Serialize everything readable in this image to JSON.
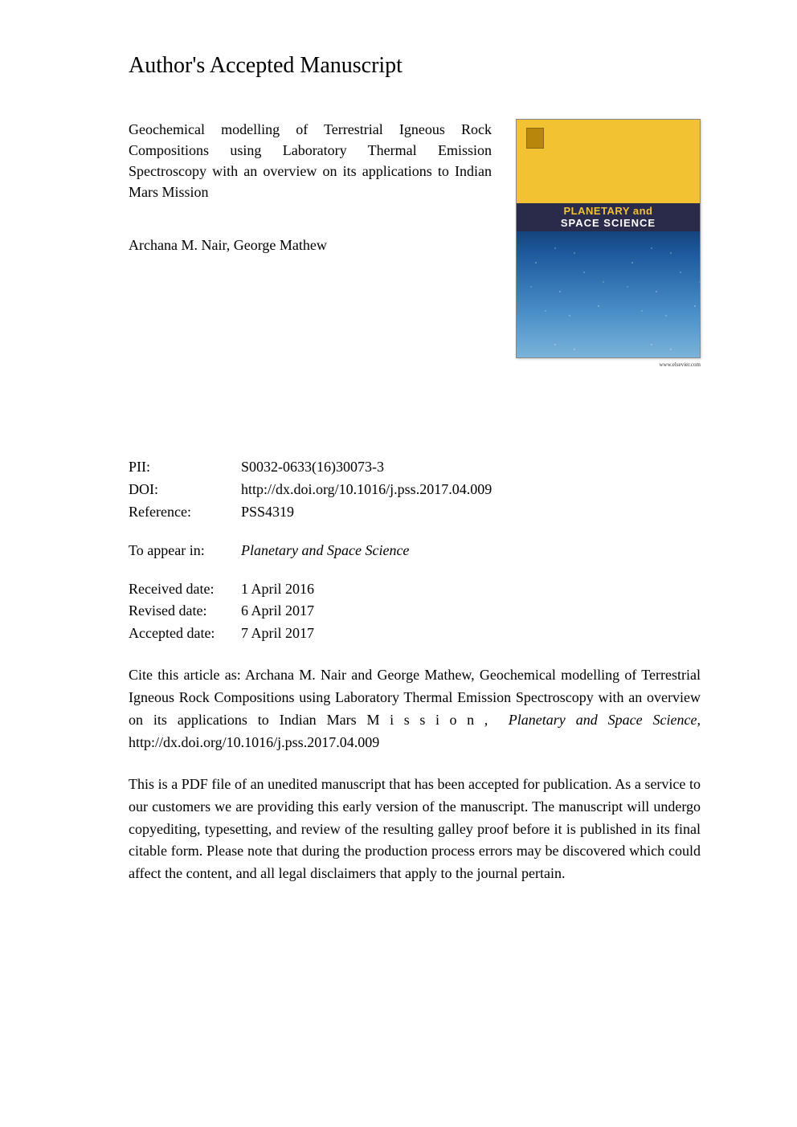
{
  "heading": "Author's Accepted Manuscript",
  "article": {
    "title": "Geochemical modelling of Terrestrial Igneous Rock Compositions using Laboratory Thermal Emission Spectroscopy with an overview on its applications to Indian Mars Mission",
    "authors": "Archana M. Nair, George Mathew"
  },
  "cover": {
    "journal_line1": "PLANETARY and",
    "journal_line2": "SPACE SCIENCE",
    "caption": "www.elsevier.com",
    "bg_top": "#f2c232",
    "bg_band": "#2a2a4a",
    "title_color1": "#f2c232",
    "title_color2": "#ffffff"
  },
  "meta": {
    "pii_label": "PII:",
    "pii": "S0032-0633(16)30073-3",
    "doi_label": "DOI:",
    "doi": "http://dx.doi.org/10.1016/j.pss.2017.04.009",
    "ref_label": "Reference:",
    "ref": "PSS4319",
    "appear_label": "To appear in:",
    "appear": "Planetary and Space Science",
    "received_label": "Received date:",
    "received": "1 April 2016",
    "revised_label": "Revised date:",
    "revised": "6 April 2017",
    "accepted_label": "Accepted date:",
    "accepted": "7 April 2017"
  },
  "citation": {
    "prefix": "Cite this article as: Archana M. Nair and George Mathew, Geochemical modelling of Terrestrial Igneous Rock Compositions using Laboratory Thermal Emission Spectroscopy with an overview on its applications to Indian Mars ",
    "mission": "Mission,",
    "journal": "Planetary and Space Science,",
    "url": "http://dx.doi.org/10.1016/j.pss.2017.04.009"
  },
  "disclaimer": "This is a PDF file of an unedited manuscript that has been accepted for publication. As a service to our customers we are providing this early version of the manuscript. The manuscript will undergo copyediting, typesetting, and review of the resulting galley proof before it is published in its final citable form. Please note that during the production process errors may be discovered which could affect the content, and all legal disclaimers that apply to the journal pertain.",
  "colors": {
    "text": "#000000",
    "background": "#ffffff"
  },
  "typography": {
    "heading_fontsize_pt": 21,
    "body_fontsize_pt": 13,
    "font_family": "serif"
  }
}
